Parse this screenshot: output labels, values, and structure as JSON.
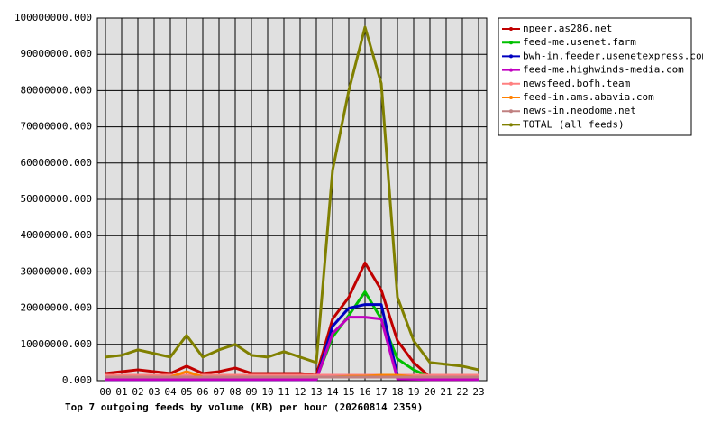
{
  "chart_data": {
    "type": "line",
    "title": "Top 7 outgoing feeds by volume (KB) per hour (20260814 2359)",
    "categories": [
      "00",
      "01",
      "02",
      "03",
      "04",
      "05",
      "06",
      "07",
      "08",
      "09",
      "10",
      "11",
      "12",
      "13",
      "14",
      "15",
      "16",
      "17",
      "18",
      "19",
      "20",
      "21",
      "22",
      "23"
    ],
    "ylim": [
      0,
      100000000
    ],
    "yticks": [
      {
        "value": 0,
        "label": "0.000"
      },
      {
        "value": 10000000,
        "label": "10000000.000"
      },
      {
        "value": 20000000,
        "label": "20000000.000"
      },
      {
        "value": 30000000,
        "label": "30000000.000"
      },
      {
        "value": 40000000,
        "label": "40000000.000"
      },
      {
        "value": 50000000,
        "label": "50000000.000"
      },
      {
        "value": 60000000,
        "label": "60000000.000"
      },
      {
        "value": 70000000,
        "label": "70000000.000"
      },
      {
        "value": 80000000,
        "label": "80000000.000"
      },
      {
        "value": 90000000,
        "label": "90000000.000"
      },
      {
        "value": 100000000,
        "label": "100000000.000"
      }
    ],
    "grid": true,
    "legend": "top-right",
    "series": [
      {
        "name": "npeer.as286.net",
        "color": "#c00000",
        "values": [
          2000000,
          2500000,
          3000000,
          2500000,
          2000000,
          4000000,
          2000000,
          2500000,
          3500000,
          2000000,
          2000000,
          2000000,
          2000000,
          1500000,
          17000000,
          23000000,
          32500000,
          25000000,
          11000000,
          5000000,
          1000000,
          1000000,
          1000000,
          1000000
        ]
      },
      {
        "name": "feed-me.usenet.farm",
        "color": "#00c000",
        "values": [
          500000,
          500000,
          500000,
          500000,
          500000,
          500000,
          500000,
          500000,
          500000,
          500000,
          500000,
          500000,
          500000,
          500000,
          12000000,
          18000000,
          24500000,
          17000000,
          6000000,
          3000000,
          1000000,
          800000,
          700000,
          600000
        ]
      },
      {
        "name": "bwh-in.feeder.usenetexpress.com",
        "color": "#0000c0",
        "values": [
          300000,
          300000,
          300000,
          300000,
          300000,
          300000,
          300000,
          300000,
          300000,
          300000,
          300000,
          300000,
          300000,
          300000,
          15000000,
          20000000,
          21000000,
          21000000,
          1500000,
          1000000,
          500000,
          400000,
          400000,
          300000
        ]
      },
      {
        "name": "feed-me.highwinds-media.com",
        "color": "#c000c0",
        "values": [
          300000,
          300000,
          300000,
          300000,
          300000,
          300000,
          300000,
          300000,
          300000,
          300000,
          300000,
          300000,
          300000,
          300000,
          13000000,
          17500000,
          17500000,
          17000000,
          500000,
          400000,
          300000,
          300000,
          300000,
          300000
        ]
      },
      {
        "name": "newsfeed.bofh.team",
        "color": "#ff8080",
        "values": [
          1500000,
          1500000,
          1500000,
          1500000,
          1500000,
          1500000,
          1500000,
          1500000,
          1500000,
          1500000,
          1500000,
          1500000,
          1500000,
          1500000,
          1500000,
          1500000,
          1500000,
          1500000,
          1500000,
          1500000,
          1500000,
          1500000,
          1500000,
          1500000
        ]
      },
      {
        "name": "feed-in.ams.abavia.com",
        "color": "#ff8000",
        "values": [
          1000000,
          1000000,
          1000000,
          1000000,
          1000000,
          2500000,
          1000000,
          1000000,
          1000000,
          1000000,
          1000000,
          1000000,
          1000000,
          1000000,
          1000000,
          1200000,
          1200000,
          1500000,
          1500000,
          1000000,
          1000000,
          1000000,
          1000000,
          1000000
        ]
      },
      {
        "name": "news-in.neodome.net",
        "color": "#c08080",
        "values": [
          1000000,
          1000000,
          1000000,
          1000000,
          1000000,
          1000000,
          1000000,
          1000000,
          1000000,
          1000000,
          1000000,
          1000000,
          1000000,
          1000000,
          1000000,
          1000000,
          1000000,
          1000000,
          1000000,
          1000000,
          1000000,
          1000000,
          1000000,
          1000000
        ]
      },
      {
        "name": "TOTAL (all feeds)",
        "color": "#808000",
        "values": [
          6500000,
          7000000,
          8500000,
          7500000,
          6500000,
          12500000,
          6500000,
          8500000,
          10000000,
          7000000,
          6500000,
          8000000,
          6500000,
          5000000,
          58000000,
          80000000,
          97500000,
          82000000,
          23000000,
          11000000,
          5000000,
          4500000,
          4000000,
          3000000
        ]
      }
    ]
  }
}
